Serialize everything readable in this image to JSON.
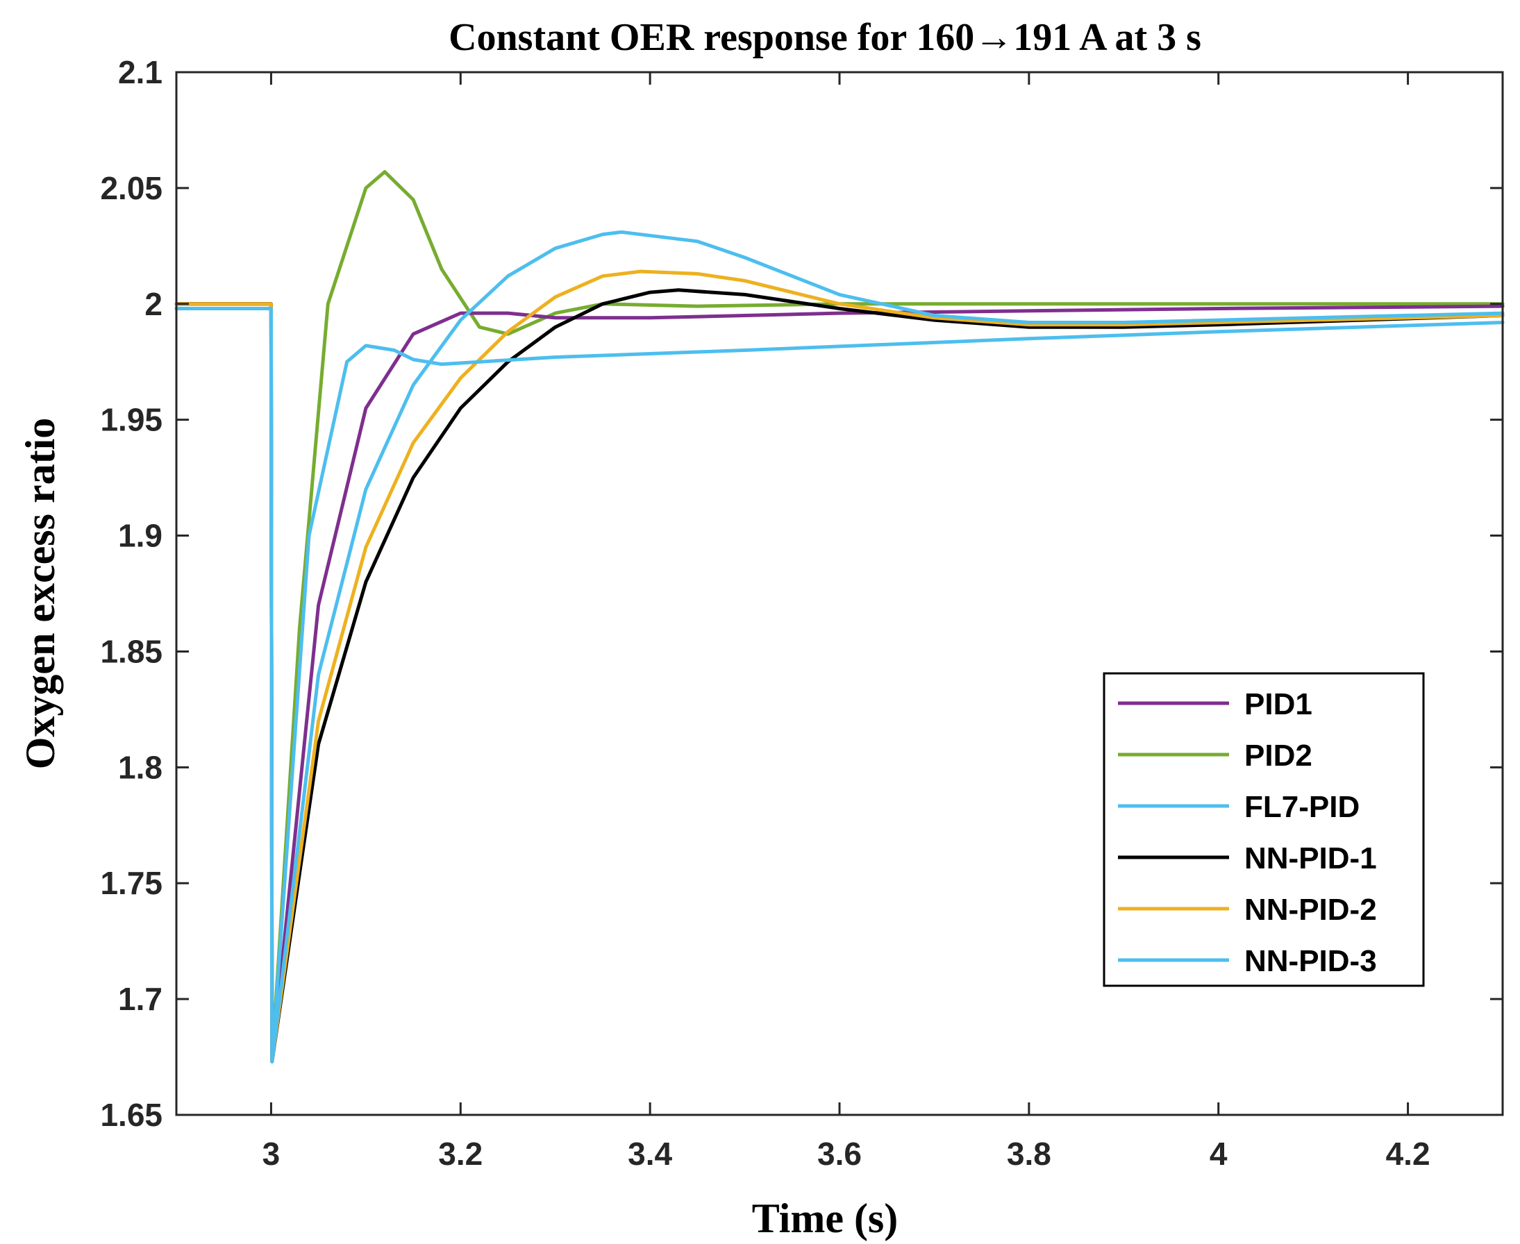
{
  "chart_data": {
    "type": "line",
    "title": "Constant OER response for 160→191 A at 3 s",
    "xlabel": "Time (s)",
    "ylabel": "Oxygen excess ratio",
    "xlim": [
      2.9,
      4.3
    ],
    "ylim": [
      1.65,
      2.1
    ],
    "xticks": [
      3,
      3.2,
      3.4,
      3.6,
      3.8,
      4,
      4.2
    ],
    "xtick_labels": [
      "3",
      "3.2",
      "3.4",
      "3.6",
      "3.8",
      "4",
      "4.2"
    ],
    "yticks": [
      1.65,
      1.7,
      1.75,
      1.8,
      1.85,
      1.9,
      1.95,
      2,
      2.05,
      2.1
    ],
    "ytick_labels": [
      "1.65",
      "1.7",
      "1.75",
      "1.8",
      "1.85",
      "1.9",
      "1.95",
      "2",
      "2.05",
      "2.1"
    ],
    "grid": false,
    "legend_position": "right",
    "series": [
      {
        "name": "PID1",
        "color": "#7E2F8E",
        "x": [
          2.9,
          3.0,
          3.001,
          3.05,
          3.1,
          3.15,
          3.2,
          3.25,
          3.3,
          3.4,
          3.5,
          3.6,
          3.8,
          4.0,
          4.3
        ],
        "y": [
          2.0,
          2.0,
          1.673,
          1.87,
          1.955,
          1.987,
          1.996,
          1.996,
          1.994,
          1.994,
          1.995,
          1.996,
          1.997,
          1.998,
          1.999
        ]
      },
      {
        "name": "PID2",
        "color": "#77AC30",
        "x": [
          2.9,
          3.0,
          3.001,
          3.03,
          3.06,
          3.1,
          3.12,
          3.15,
          3.18,
          3.22,
          3.25,
          3.3,
          3.35,
          3.45,
          3.6,
          3.8,
          4.3
        ],
        "y": [
          2.0,
          2.0,
          1.673,
          1.86,
          2.0,
          2.05,
          2.057,
          2.045,
          2.015,
          1.99,
          1.987,
          1.996,
          2.0,
          1.999,
          2.0,
          2.0,
          2.0
        ]
      },
      {
        "name": "FL7-PID",
        "color": "#4DBEEE",
        "x": [
          2.9,
          3.0,
          3.001,
          3.04,
          3.08,
          3.1,
          3.13,
          3.15,
          3.18,
          3.22,
          3.3,
          3.5,
          3.8,
          4.0,
          4.3
        ],
        "y": [
          1.998,
          1.998,
          1.673,
          1.9,
          1.975,
          1.982,
          1.98,
          1.976,
          1.974,
          1.975,
          1.977,
          1.98,
          1.985,
          1.988,
          1.992
        ]
      },
      {
        "name": "NN-PID-1",
        "color": "#000000",
        "x": [
          2.9,
          3.0,
          3.001,
          3.05,
          3.1,
          3.15,
          3.2,
          3.25,
          3.3,
          3.35,
          3.4,
          3.43,
          3.5,
          3.6,
          3.7,
          3.8,
          3.9,
          4.0,
          4.3
        ],
        "y": [
          2.0,
          2.0,
          1.673,
          1.81,
          1.88,
          1.925,
          1.955,
          1.975,
          1.99,
          2.0,
          2.005,
          2.006,
          2.004,
          1.998,
          1.993,
          1.99,
          1.99,
          1.991,
          1.995
        ]
      },
      {
        "name": "NN-PID-2",
        "color": "#EDB120",
        "x": [
          2.9,
          3.0,
          3.001,
          3.05,
          3.1,
          3.15,
          3.2,
          3.25,
          3.3,
          3.35,
          3.39,
          3.45,
          3.5,
          3.6,
          3.7,
          3.8,
          3.9,
          4.0,
          4.3
        ],
        "y": [
          2.0,
          2.0,
          1.673,
          1.82,
          1.895,
          1.94,
          1.968,
          1.988,
          2.003,
          2.012,
          2.014,
          2.013,
          2.01,
          2.0,
          1.994,
          1.991,
          1.991,
          1.992,
          1.995
        ]
      },
      {
        "name": "NN-PID-3",
        "color": "#4DBEEE",
        "x": [
          2.9,
          3.0,
          3.001,
          3.05,
          3.1,
          3.15,
          3.2,
          3.25,
          3.3,
          3.35,
          3.37,
          3.45,
          3.5,
          3.6,
          3.7,
          3.8,
          3.9,
          4.0,
          4.3
        ],
        "y": [
          1.998,
          1.998,
          1.673,
          1.84,
          1.92,
          1.965,
          1.993,
          2.012,
          2.024,
          2.03,
          2.031,
          2.027,
          2.02,
          2.004,
          1.995,
          1.992,
          1.992,
          1.993,
          1.996
        ]
      }
    ]
  }
}
